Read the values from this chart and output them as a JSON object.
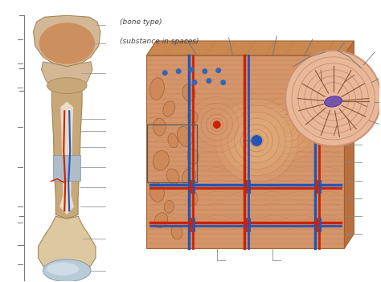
{
  "bg_color": "#ffffff",
  "label1": "(bone type)",
  "label2": "(substance in spaces)",
  "bone_outer": "#d4b896",
  "bone_shaft": "#c8a878",
  "bone_inner": "#e8dcc8",
  "bone_edge": "#a08858",
  "spongy_color": "#cc8855",
  "marrow_color": "#ddc8a8",
  "cartilage_color": "#b8c8d8",
  "cortical_color": "#d4956a",
  "osteon_color": "#e8a878",
  "lamella_color": "#c07850",
  "vessel_red": "#cc2200",
  "vessel_blue": "#2255bb",
  "vessel_red2": "#dd3311",
  "line_color": "#888888",
  "dark_brown": "#7a4520",
  "cell_color": "#7755aa",
  "circ_bg": "#e8b898",
  "figsize": [
    4.74,
    3.51
  ],
  "dpi": 100
}
